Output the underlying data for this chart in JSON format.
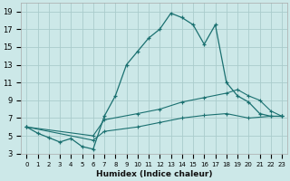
{
  "title": "",
  "xlabel": "Humidex (Indice chaleur)",
  "background_color": "#cce8e8",
  "grid_color": "#aacccc",
  "line_color": "#1a7070",
  "xlim": [
    -0.5,
    23.5
  ],
  "ylim": [
    3,
    20
  ],
  "yticks": [
    3,
    5,
    7,
    9,
    11,
    13,
    15,
    17,
    19
  ],
  "xticks": [
    0,
    1,
    2,
    3,
    4,
    5,
    6,
    7,
    8,
    9,
    10,
    11,
    12,
    13,
    14,
    15,
    16,
    17,
    18,
    19,
    20,
    21,
    22,
    23
  ],
  "line1_x": [
    0,
    1,
    2,
    3,
    4,
    5,
    6,
    7,
    8,
    9,
    10,
    11,
    12,
    13,
    14,
    15,
    16,
    17,
    18,
    19,
    20,
    21,
    22,
    23
  ],
  "line1_y": [
    6.0,
    5.3,
    4.8,
    4.3,
    4.7,
    3.8,
    3.5,
    7.2,
    9.5,
    13.0,
    14.5,
    16.0,
    17.0,
    18.8,
    18.3,
    17.5,
    15.3,
    17.5,
    11.0,
    9.5,
    8.8,
    7.5,
    7.2,
    7.2
  ],
  "line2_x": [
    0,
    6,
    7,
    10,
    12,
    14,
    16,
    18,
    19,
    20,
    21,
    22,
    23
  ],
  "line2_y": [
    6.0,
    5.0,
    6.8,
    7.5,
    8.0,
    8.8,
    9.3,
    9.8,
    10.2,
    9.5,
    9.0,
    7.8,
    7.2
  ],
  "line3_x": [
    0,
    6,
    7,
    10,
    12,
    14,
    16,
    18,
    20,
    22,
    23
  ],
  "line3_y": [
    6.0,
    4.5,
    5.5,
    6.0,
    6.5,
    7.0,
    7.3,
    7.5,
    7.0,
    7.2,
    7.2
  ]
}
